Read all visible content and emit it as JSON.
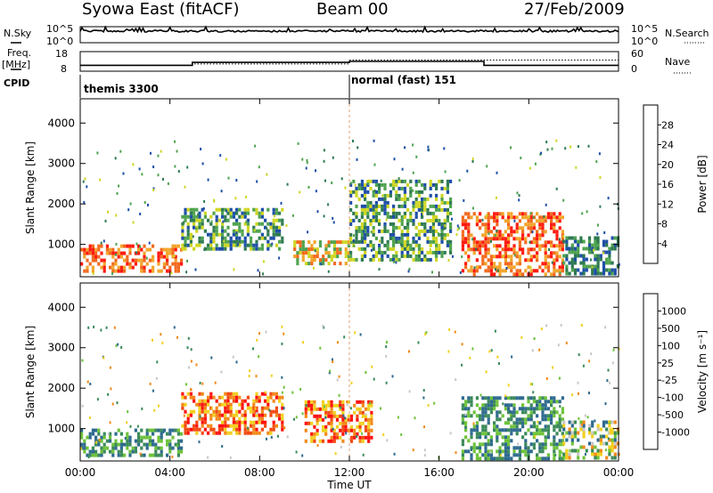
{
  "header": {
    "title": "Syowa East (fitACF)",
    "beam": "Beam 00",
    "date": "27/Feb/2009"
  },
  "panels_small": {
    "nsky_label": "N.Sky",
    "nsky_top": "10^5",
    "nsky_bottom": "10^0",
    "nsky_right_top": "10^5",
    "nsky_right_bottom": "10^0",
    "nsearch_label": "N.Search",
    "freq_label_1": "Freq.",
    "freq_label_2": "[MHz]",
    "freq_top": "18",
    "freq_bottom": "8",
    "nave_label": "Nave",
    "nave_top": "60",
    "nave_bottom": "0",
    "cpid_label": "CPID",
    "cpid_1": "themis 3300",
    "cpid_2": "normal (fast) 151"
  },
  "axes": {
    "ylabel": "Slant Range [km]",
    "xlabel": "Time UT",
    "yticks": [
      "1000",
      "2000",
      "3000",
      "4000"
    ],
    "xticks": [
      "00:00",
      "04:00",
      "08:00",
      "12:00",
      "16:00",
      "20:00",
      "00:00"
    ]
  },
  "colorbars": {
    "power": {
      "label": "Power [dB]",
      "ticks": [
        "4",
        "8",
        "12",
        "16",
        "20",
        "24",
        "28"
      ],
      "colors": [
        "#0018ff",
        "#1e4fa8",
        "#2f7a52",
        "#4fa34f",
        "#cfd624",
        "#f2a52a",
        "#f26a1e",
        "#ff1a10"
      ]
    },
    "velocity": {
      "label": "Velocity [m s⁻¹]",
      "ticks": [
        "1000",
        "500",
        "100",
        "25",
        "-25",
        "-100",
        "-500",
        "-1000"
      ],
      "colors": [
        "#2b2fd6",
        "#2e6a8f",
        "#3b8a5a",
        "#6ec33a",
        "#c8c8c8",
        "#f2d020",
        "#f28a1a",
        "#f24a12",
        "#ff1010"
      ]
    }
  },
  "chart_data": [
    {
      "type": "heatmap",
      "title": "Power",
      "xlabel": "Time UT",
      "ylabel": "Slant Range [km]",
      "xlim_hours": [
        0,
        24
      ],
      "ylim_km": [
        200,
        4600
      ],
      "colorbar_label": "Power [dB]",
      "colorbar_range": [
        0,
        32
      ],
      "regions": [
        {
          "t_start": 0.0,
          "t_end": 4.5,
          "r_min": 300,
          "r_max": 1000,
          "level": "high",
          "note": "red/orange near-range band"
        },
        {
          "t_start": 4.5,
          "t_end": 9.0,
          "r_min": 900,
          "r_max": 1900,
          "level": "medium"
        },
        {
          "t_start": 9.5,
          "t_end": 12.0,
          "r_min": 500,
          "r_max": 1100,
          "level": "medium-high"
        },
        {
          "t_start": 12.0,
          "t_end": 16.5,
          "r_min": 600,
          "r_max": 2600,
          "level": "medium"
        },
        {
          "t_start": 17.0,
          "t_end": 21.5,
          "r_min": 300,
          "r_max": 1800,
          "level": "high",
          "note": "orange/red"
        },
        {
          "t_start": 21.5,
          "t_end": 24.0,
          "r_min": 300,
          "r_max": 1200,
          "level": "low-medium"
        }
      ]
    },
    {
      "type": "heatmap",
      "title": "Velocity",
      "xlabel": "Time UT",
      "ylabel": "Slant Range [km]",
      "xlim_hours": [
        0,
        24
      ],
      "ylim_km": [
        200,
        4600
      ],
      "colorbar_label": "Velocity [m s⁻¹]",
      "colorbar_range": [
        -1000,
        1000
      ],
      "regions": [
        {
          "t_start": 0.0,
          "t_end": 4.5,
          "r_min": 300,
          "r_max": 1000,
          "velocity": "positive ~100-500"
        },
        {
          "t_start": 4.5,
          "t_end": 9.0,
          "r_min": 900,
          "r_max": 1900,
          "velocity": "negative ~-100 to -500"
        },
        {
          "t_start": 10.0,
          "t_end": 13.0,
          "r_min": 700,
          "r_max": 1700,
          "velocity": "negative ~-100"
        },
        {
          "t_start": 17.0,
          "t_end": 21.5,
          "r_min": 300,
          "r_max": 1800,
          "velocity": "positive ~100-500"
        },
        {
          "t_start": 21.5,
          "t_end": 24.0,
          "r_min": 300,
          "r_max": 1200,
          "velocity": "mixed"
        }
      ]
    },
    {
      "type": "line",
      "title": "Freq [MHz]",
      "x_hours": [
        0,
        5,
        5,
        12,
        12,
        18,
        18,
        24
      ],
      "y": [
        11,
        11,
        12.5,
        12.5,
        13,
        13,
        11,
        11
      ]
    },
    {
      "type": "line",
      "title": "Nave",
      "x_hours": [
        0,
        5,
        5,
        12,
        12,
        24
      ],
      "y": [
        18,
        18,
        22,
        22,
        34,
        34
      ]
    }
  ]
}
